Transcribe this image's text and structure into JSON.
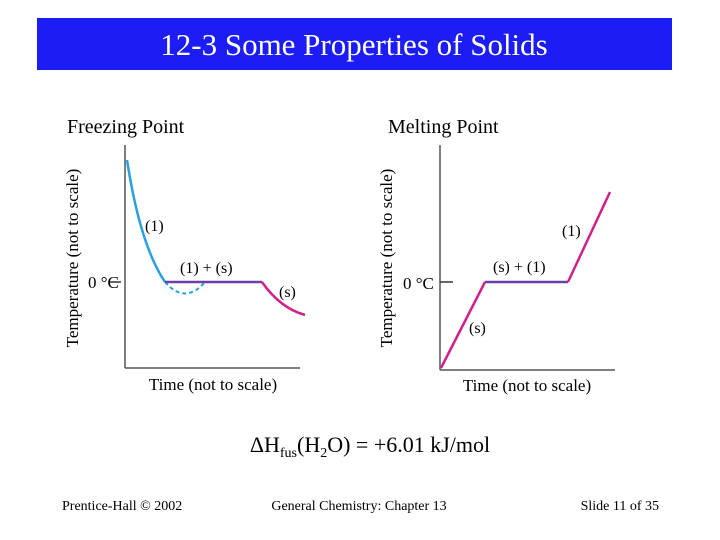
{
  "header": {
    "title": "12-3 Some Properties of Solids"
  },
  "diagrams": [
    {
      "heading": "Freezing Point",
      "y_label": "Temperature (not to scale)",
      "x_label": "Time (not to scale)",
      "zero_label": "0 °C",
      "region_labels": [
        "(1)",
        "(1) + (s)",
        "(s)"
      ]
    },
    {
      "heading": "Melting Point",
      "y_label": "Temperature (not to scale)",
      "x_label": "Time (not to scale)",
      "zero_label": "0 °C",
      "region_labels": [
        "(1)",
        "(s) + (1)",
        "(s)"
      ]
    }
  ],
  "formula": {
    "delta": "ΔH",
    "sub1": "fus",
    "open": "(H",
    "sub2": "2",
    "rest": "O) = +6.01 kJ/mol"
  },
  "footer": {
    "left": "Prentice-Hall © 2002",
    "center": "General Chemistry: Chapter 13",
    "right": "Slide 11 of 35"
  }
}
